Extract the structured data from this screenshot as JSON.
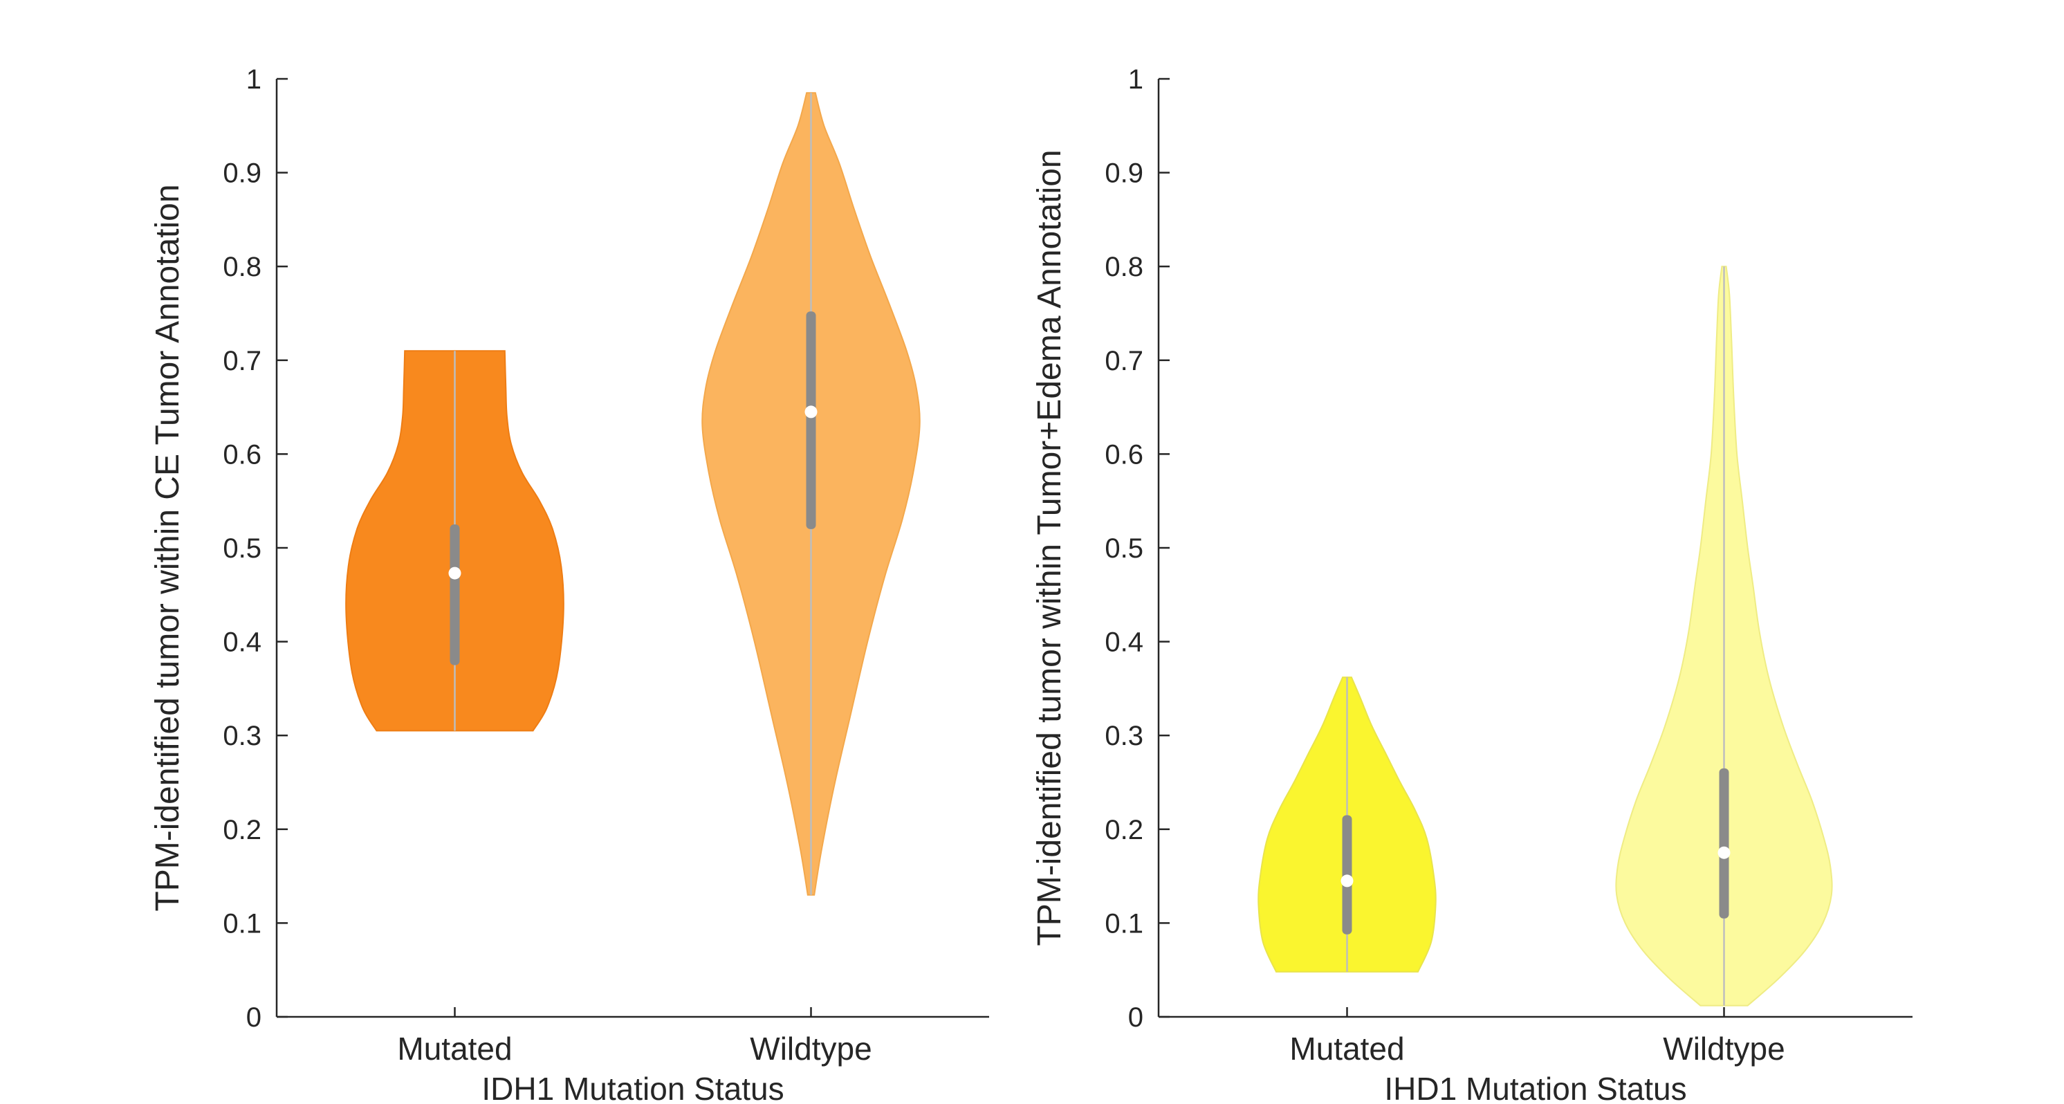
{
  "figure": {
    "background": "#ffffff",
    "text_color": "#262626",
    "axis_color": "#262626"
  },
  "style": {
    "box_color": "#8A8A8A",
    "median_color": "#FFFFFF",
    "whisker_color": "#BDBDBD"
  },
  "chart_data": [
    {
      "type": "violin",
      "title": "",
      "xlabel": "IDH1 Mutation Status",
      "ylabel": "TPM-identified tumor within CE Tumor Annotation",
      "ylim": [
        0,
        1
      ],
      "grid": false,
      "legend": "none",
      "yticks": [
        0,
        0.1,
        0.2,
        0.3,
        0.4,
        0.5,
        0.6,
        0.7,
        0.8,
        0.9,
        1
      ],
      "ytick_labels": [
        "0",
        "0.1",
        "0.2",
        "0.3",
        "0.4",
        "0.5",
        "0.6",
        "0.7",
        "0.8",
        "0.9",
        "1"
      ],
      "categories": [
        "Mutated",
        "Wildtype"
      ],
      "series": [
        {
          "name": "Mutated",
          "fill": "#F8891E",
          "edge": "#EE7D14",
          "width": 0.61,
          "median": 0.473,
          "q1": 0.375,
          "q3": 0.525,
          "range": [
            0.305,
            0.71
          ],
          "profile": [
            [
              0.305,
              0.72
            ],
            [
              0.33,
              0.85
            ],
            [
              0.37,
              0.95
            ],
            [
              0.43,
              1.0
            ],
            [
              0.48,
              0.98
            ],
            [
              0.52,
              0.9
            ],
            [
              0.55,
              0.78
            ],
            [
              0.58,
              0.62
            ],
            [
              0.61,
              0.52
            ],
            [
              0.64,
              0.48
            ],
            [
              0.67,
              0.47
            ],
            [
              0.71,
              0.46
            ]
          ]
        },
        {
          "name": "Wildtype",
          "fill": "#FBB45E",
          "edge": "#F3A84C",
          "width": 0.61,
          "median": 0.645,
          "q1": 0.52,
          "q3": 0.752,
          "range": [
            0.13,
            0.985
          ],
          "profile": [
            [
              0.13,
              0.03
            ],
            [
              0.18,
              0.1
            ],
            [
              0.25,
              0.22
            ],
            [
              0.32,
              0.36
            ],
            [
              0.4,
              0.52
            ],
            [
              0.47,
              0.68
            ],
            [
              0.53,
              0.84
            ],
            [
              0.58,
              0.94
            ],
            [
              0.63,
              1.0
            ],
            [
              0.67,
              0.97
            ],
            [
              0.71,
              0.88
            ],
            [
              0.76,
              0.72
            ],
            [
              0.81,
              0.55
            ],
            [
              0.86,
              0.4
            ],
            [
              0.91,
              0.26
            ],
            [
              0.95,
              0.12
            ],
            [
              0.985,
              0.04
            ]
          ]
        }
      ]
    },
    {
      "type": "violin",
      "title": "",
      "xlabel": "IHD1 Mutation Status",
      "ylabel": "TPM-identified tumor within Tumor+Edema Annotation",
      "ylim": [
        0,
        1
      ],
      "grid": false,
      "legend": "none",
      "yticks": [
        0,
        0.1,
        0.2,
        0.3,
        0.4,
        0.5,
        0.6,
        0.7,
        0.8,
        0.9,
        1
      ],
      "ytick_labels": [
        "0",
        "0.1",
        "0.2",
        "0.3",
        "0.4",
        "0.5",
        "0.6",
        "0.7",
        "0.8",
        "0.9",
        "1"
      ],
      "categories": [
        "Mutated",
        "Wildtype"
      ],
      "series": [
        {
          "name": "Mutated",
          "fill": "#FAF52F",
          "edge": "#E9E44B",
          "width": 0.47,
          "median": 0.145,
          "q1": 0.088,
          "q3": 0.215,
          "range": [
            0.048,
            0.362
          ],
          "profile": [
            [
              0.048,
              0.8
            ],
            [
              0.08,
              0.95
            ],
            [
              0.12,
              1.0
            ],
            [
              0.15,
              0.98
            ],
            [
              0.19,
              0.9
            ],
            [
              0.22,
              0.77
            ],
            [
              0.25,
              0.6
            ],
            [
              0.28,
              0.44
            ],
            [
              0.31,
              0.28
            ],
            [
              0.34,
              0.15
            ],
            [
              0.362,
              0.05
            ]
          ]
        },
        {
          "name": "Wildtype",
          "fill": "#FCFA9E",
          "edge": "#EFEC85",
          "width": 0.57,
          "median": 0.175,
          "q1": 0.105,
          "q3": 0.265,
          "range": [
            0.012,
            0.8
          ],
          "profile": [
            [
              0.012,
              0.22
            ],
            [
              0.04,
              0.5
            ],
            [
              0.07,
              0.75
            ],
            [
              0.1,
              0.92
            ],
            [
              0.13,
              1.0
            ],
            [
              0.16,
              0.99
            ],
            [
              0.19,
              0.93
            ],
            [
              0.23,
              0.82
            ],
            [
              0.27,
              0.68
            ],
            [
              0.31,
              0.55
            ],
            [
              0.36,
              0.42
            ],
            [
              0.41,
              0.33
            ],
            [
              0.46,
              0.27
            ],
            [
              0.5,
              0.22
            ],
            [
              0.55,
              0.17
            ],
            [
              0.6,
              0.12
            ],
            [
              0.66,
              0.09
            ],
            [
              0.72,
              0.07
            ],
            [
              0.77,
              0.05
            ],
            [
              0.8,
              0.02
            ]
          ]
        }
      ]
    }
  ]
}
